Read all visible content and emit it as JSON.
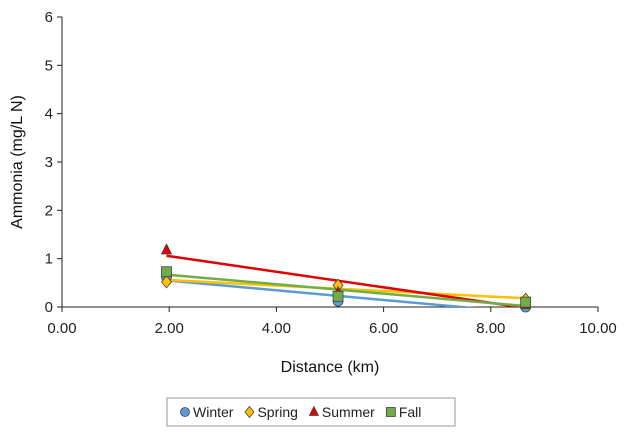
{
  "chart_data": {
    "type": "scatter",
    "title": "",
    "xlabel": "Distance (km)",
    "ylabel": "Ammonia (mg/L N)",
    "xlim": [
      0,
      10
    ],
    "ylim": [
      0,
      6
    ],
    "x_ticks": [
      "0.00",
      "2.00",
      "4.00",
      "6.00",
      "8.00",
      "10.00"
    ],
    "y_ticks": [
      "0",
      "1",
      "2",
      "3",
      "4",
      "5",
      "6"
    ],
    "grid": false,
    "legend_position": "bottom",
    "trendlines": "linear",
    "series": [
      {
        "name": "Winter",
        "marker": "circle",
        "color": "#5b9bd5",
        "line_color": "#5b9bd5",
        "x": [
          1.95,
          5.15,
          8.65
        ],
        "y": [
          0.62,
          0.12,
          0.0
        ],
        "trend": {
          "x": [
            1.95,
            8.65
          ],
          "y": [
            0.55,
            -0.12
          ]
        }
      },
      {
        "name": "Spring",
        "marker": "diamond",
        "color": "#ffc000",
        "line_color": "#ffc000",
        "x": [
          1.95,
          5.15,
          8.65
        ],
        "y": [
          0.52,
          0.45,
          0.16
        ],
        "trend": {
          "x": [
            1.95,
            8.65
          ],
          "y": [
            0.56,
            0.18
          ]
        }
      },
      {
        "name": "Summer",
        "marker": "triangle",
        "color": "#e00000",
        "line_color": "#e00000",
        "x": [
          1.95,
          5.15,
          8.65
        ],
        "y": [
          1.18,
          0.3,
          0.05
        ],
        "trend": {
          "x": [
            1.95,
            8.65
          ],
          "y": [
            1.06,
            -0.02
          ]
        }
      },
      {
        "name": "Fall",
        "marker": "square",
        "color": "#70ad47",
        "line_color": "#70ad47",
        "x": [
          1.95,
          5.15,
          8.65
        ],
        "y": [
          0.73,
          0.22,
          0.1
        ],
        "trend": {
          "x": [
            1.95,
            8.65
          ],
          "y": [
            0.67,
            0.02
          ]
        }
      }
    ]
  }
}
